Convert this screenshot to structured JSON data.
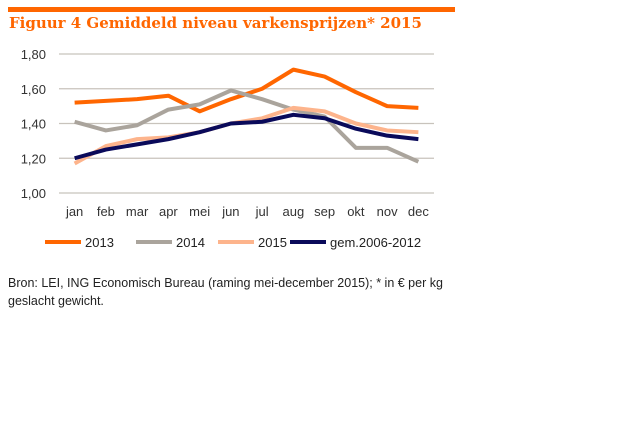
{
  "title": "Figuur 4  Gemiddeld niveau varkensprijzen* 2015",
  "source": "Bron: LEI, ING Economisch Bureau (raming mei-december 2015); * in € per kg geslacht gewicht.",
  "chart_data": {
    "type": "line",
    "title": "Figuur 4  Gemiddeld niveau varkensprijzen* 2015",
    "categories": [
      "jan",
      "feb",
      "mar",
      "apr",
      "mei",
      "jun",
      "jul",
      "aug",
      "sep",
      "okt",
      "nov",
      "dec"
    ],
    "ylim": [
      1.0,
      1.8
    ],
    "yticks": [
      "1,00",
      "1,20",
      "1,40",
      "1,60",
      "1,80"
    ],
    "grid": true,
    "legend": "bottom",
    "series": [
      {
        "name": "2013",
        "color": "#ff6600",
        "values": [
          1.52,
          1.53,
          1.54,
          1.56,
          1.47,
          1.54,
          1.6,
          1.71,
          1.67,
          1.58,
          1.5,
          1.49
        ]
      },
      {
        "name": "2014",
        "color": "#aaa49c",
        "values": [
          1.41,
          1.36,
          1.39,
          1.48,
          1.51,
          1.59,
          1.54,
          1.48,
          1.44,
          1.26,
          1.26,
          1.18
        ]
      },
      {
        "name": "2015",
        "color": "#fdb48c",
        "values": [
          1.17,
          1.27,
          1.31,
          1.32,
          1.35,
          1.4,
          1.43,
          1.49,
          1.47,
          1.4,
          1.36,
          1.35
        ]
      },
      {
        "name": "gem.2006-2012",
        "color": "#0a0a5a",
        "values": [
          1.2,
          1.25,
          1.28,
          1.31,
          1.35,
          1.4,
          1.41,
          1.45,
          1.43,
          1.37,
          1.33,
          1.31
        ]
      }
    ]
  }
}
